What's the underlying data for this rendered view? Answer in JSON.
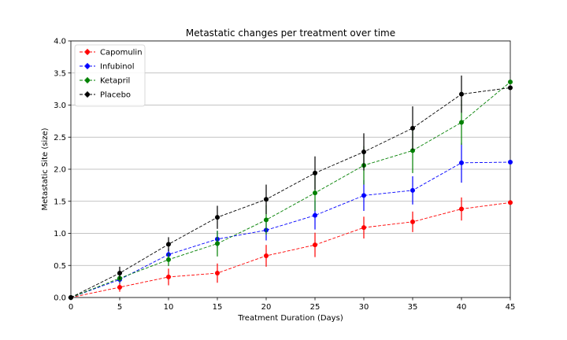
{
  "chart_data": {
    "type": "line",
    "title": "Metastatic changes per treatment over time",
    "xlabel": "Treatment Duration (Days)",
    "ylabel": "Metastatic Site (size)",
    "xlim": [
      0,
      45
    ],
    "ylim": [
      0,
      4.0
    ],
    "x": [
      0,
      5,
      10,
      15,
      20,
      25,
      30,
      35,
      40,
      45
    ],
    "xticks": [
      "0",
      "5",
      "10",
      "15",
      "20",
      "25",
      "30",
      "35",
      "40",
      "45"
    ],
    "yticks": [
      "0.0",
      "0.5",
      "1.0",
      "1.5",
      "2.0",
      "2.5",
      "3.0",
      "3.5",
      "4.0"
    ],
    "grid": "horizontal",
    "legend_position": "top-left",
    "series": [
      {
        "name": "Capomulin",
        "color": "#ff0000",
        "values": [
          0.0,
          0.16,
          0.32,
          0.38,
          0.65,
          0.82,
          1.09,
          1.18,
          1.38,
          1.48
        ],
        "errors": [
          0.0,
          0.07,
          0.13,
          0.15,
          0.17,
          0.19,
          0.17,
          0.16,
          0.18,
          0.0
        ]
      },
      {
        "name": "Infubinol",
        "color": "#0000ff",
        "values": [
          0.0,
          0.28,
          0.67,
          0.91,
          1.05,
          1.28,
          1.59,
          1.67,
          2.1,
          2.11
        ],
        "errors": [
          0.0,
          0.06,
          0.09,
          0.13,
          0.16,
          0.22,
          0.24,
          0.22,
          0.31,
          0.0
        ]
      },
      {
        "name": "Ketapril",
        "color": "#008000",
        "values": [
          0.0,
          0.3,
          0.59,
          0.84,
          1.21,
          1.63,
          2.06,
          2.29,
          2.73,
          3.36
        ],
        "errors": [
          0.0,
          0.06,
          0.1,
          0.2,
          0.23,
          0.28,
          0.3,
          0.35,
          0.35,
          0.0
        ]
      },
      {
        "name": "Placebo",
        "color": "#000000",
        "values": [
          0.0,
          0.38,
          0.83,
          1.25,
          1.53,
          1.94,
          2.27,
          2.64,
          3.17,
          3.27
        ],
        "errors": [
          0.0,
          0.1,
          0.11,
          0.18,
          0.23,
          0.26,
          0.29,
          0.34,
          0.29,
          0.0
        ]
      }
    ]
  }
}
